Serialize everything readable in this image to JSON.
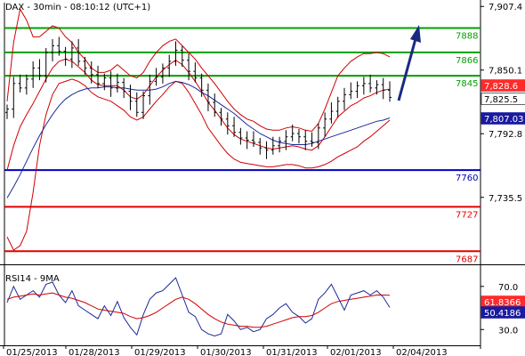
{
  "header": {
    "title": "DAX - 30min - 08:10:12 (UTC+1)"
  },
  "chart_data": [
    {
      "type": "candlestick",
      "title": "DAX - 30min - 08:10:12 (UTC+1)",
      "y_ticks": [
        "7,907.4",
        "7,850.1",
        "7,792.8",
        "7,735.5"
      ],
      "y_tick_values": [
        7907.4,
        7850.1,
        7792.8,
        7735.5
      ],
      "ylim": [
        7676,
        7910
      ],
      "x_ticks": [
        "01/25/2013",
        "01/28/2013",
        "01/29/2013",
        "01/30/2013",
        "01/31/2013",
        "02/01/2013",
        "02/04/2013"
      ],
      "grid": false,
      "levels": [
        {
          "value": 7888,
          "label": "7888",
          "color": "#00a000"
        },
        {
          "value": 7866,
          "label": "7866",
          "color": "#00a000"
        },
        {
          "value": 7845,
          "label": "7845",
          "color": "#00a000"
        },
        {
          "value": 7760,
          "label": "7760",
          "color": "#0000c0"
        },
        {
          "value": 7727,
          "label": "7727",
          "color": "#e00000"
        },
        {
          "value": 7687,
          "label": "7687",
          "color": "#e00000"
        }
      ],
      "price_tags": [
        {
          "label": "7,828.6",
          "value": 7828.6,
          "color": "#ff2a2a"
        },
        {
          "label": "7,825.5",
          "value": 7825.5,
          "color": "#ffffff"
        },
        {
          "label": "7,807.03",
          "value": 7807.03,
          "color": "#1a1aa0"
        }
      ],
      "series": [
        {
          "name": "Close",
          "values": [
            7815,
            7838,
            7834,
            7842,
            7852,
            7845,
            7866,
            7872,
            7867,
            7860,
            7870,
            7858,
            7852,
            7846,
            7838,
            7843,
            7834,
            7839,
            7831,
            7822,
            7812,
            7827,
            7840,
            7844,
            7852,
            7858,
            7868,
            7859,
            7849,
            7843,
            7832,
            7821,
            7812,
            7806,
            7800,
            7794,
            7789,
            7787,
            7785,
            7780,
            7778,
            7782,
            7786,
            7790,
            7793,
            7790,
            7786,
            7785,
            7798,
            7806,
            7813,
            7822,
            7828,
            7831,
            7836,
            7838,
            7834,
            7837,
            7832,
            7825.5
          ]
        },
        {
          "name": "Bollinger Upper",
          "values": [
            7822,
            7875,
            7905,
            7895,
            7880,
            7880,
            7885,
            7890,
            7888,
            7880,
            7875,
            7866,
            7860,
            7852,
            7848,
            7848,
            7850,
            7855,
            7850,
            7845,
            7843,
            7848,
            7858,
            7866,
            7872,
            7876,
            7878,
            7872,
            7866,
            7860,
            7852,
            7845,
            7838,
            7830,
            7822,
            7815,
            7810,
            7806,
            7804,
            7800,
            7797,
            7796,
            7796,
            7798,
            7799,
            7798,
            7796,
            7795,
            7802,
            7815,
            7830,
            7845,
            7852,
            7858,
            7862,
            7865,
            7865,
            7866,
            7865,
            7862
          ]
        },
        {
          "name": "Bollinger Lower",
          "values": [
            7700,
            7688,
            7692,
            7705,
            7740,
            7782,
            7810,
            7828,
            7838,
            7840,
            7842,
            7840,
            7836,
            7830,
            7826,
            7824,
            7822,
            7818,
            7814,
            7808,
            7805,
            7808,
            7815,
            7822,
            7828,
            7835,
            7840,
            7838,
            7830,
            7820,
            7810,
            7798,
            7790,
            7782,
            7775,
            7770,
            7767,
            7766,
            7765,
            7764,
            7763,
            7763,
            7764,
            7765,
            7765,
            7764,
            7762,
            7762,
            7763,
            7765,
            7768,
            7772,
            7775,
            7778,
            7781,
            7786,
            7790,
            7795,
            7800,
            7805
          ]
        },
        {
          "name": "Bollinger Middle",
          "values": [
            7760,
            7782,
            7799,
            7810,
            7820,
            7831,
            7842,
            7852,
            7858,
            7860,
            7858,
            7853,
            7848,
            7841,
            7837,
            7836,
            7836,
            7836,
            7832,
            7826,
            7824,
            7828,
            7836,
            7844,
            7850,
            7855,
            7859,
            7855,
            7848,
            7840,
            7831,
            7821,
            7814,
            7806,
            7798,
            7792,
            7788,
            7786,
            7784,
            7782,
            7780,
            7779,
            7780,
            7781,
            7782,
            7781,
            7779,
            7778,
            7782,
            7790,
            7799,
            7808,
            7813,
            7818,
            7821,
            7825,
            7827,
            7830,
            7832,
            7833
          ]
        },
        {
          "name": "Moving Average",
          "values": [
            7735,
            7745,
            7756,
            7768,
            7780,
            7791,
            7801,
            7810,
            7818,
            7824,
            7828,
            7831,
            7833,
            7834,
            7834,
            7835,
            7835,
            7834,
            7834,
            7833,
            7832,
            7832,
            7832,
            7833,
            7835,
            7838,
            7840,
            7839,
            7837,
            7834,
            7830,
            7827,
            7823,
            7819,
            7815,
            7811,
            7806,
            7801,
            7797,
            7793,
            7790,
            7787,
            7785,
            7784,
            7783,
            7783,
            7783,
            7784,
            7786,
            7788,
            7790,
            7792,
            7794,
            7796,
            7798,
            7800,
            7802,
            7804,
            7805,
            7807.03
          ]
        }
      ]
    },
    {
      "type": "line",
      "title": "RSI14 - 9MA",
      "y_ticks": [
        "70.0",
        "30.0"
      ],
      "y_tick_values": [
        70,
        30
      ],
      "ylim": [
        17,
        88
      ],
      "price_tags": [
        {
          "label": "61.8366",
          "value": 61.8366,
          "color": "#ff2a2a"
        },
        {
          "label": "50.4186",
          "value": 50.4186,
          "color": "#1a1aa0"
        }
      ],
      "series": [
        {
          "name": "RSI14",
          "values": [
            55,
            70,
            58,
            62,
            66,
            60,
            72,
            74,
            62,
            55,
            66,
            52,
            48,
            44,
            40,
            52,
            43,
            56,
            41,
            32,
            25,
            44,
            58,
            64,
            66,
            72,
            78,
            62,
            46,
            42,
            30,
            26,
            24,
            26,
            44,
            38,
            30,
            32,
            28,
            30,
            40,
            44,
            50,
            54,
            46,
            42,
            36,
            40,
            58,
            64,
            72,
            60,
            48,
            62,
            64,
            66,
            62,
            66,
            60,
            50.4186
          ]
        },
        {
          "name": "9MA",
          "values": [
            58,
            60,
            61,
            62,
            63,
            62,
            63,
            64,
            62,
            60,
            59,
            57,
            55,
            52,
            49,
            48,
            47,
            46,
            45,
            42,
            40,
            41,
            43,
            46,
            50,
            54,
            58,
            60,
            58,
            54,
            49,
            44,
            40,
            37,
            35,
            34,
            33,
            33,
            32,
            32,
            33,
            35,
            37,
            39,
            41,
            42,
            42,
            43,
            46,
            50,
            54,
            56,
            57,
            58,
            59,
            60,
            61,
            62,
            62,
            61.8366
          ]
        }
      ]
    }
  ]
}
